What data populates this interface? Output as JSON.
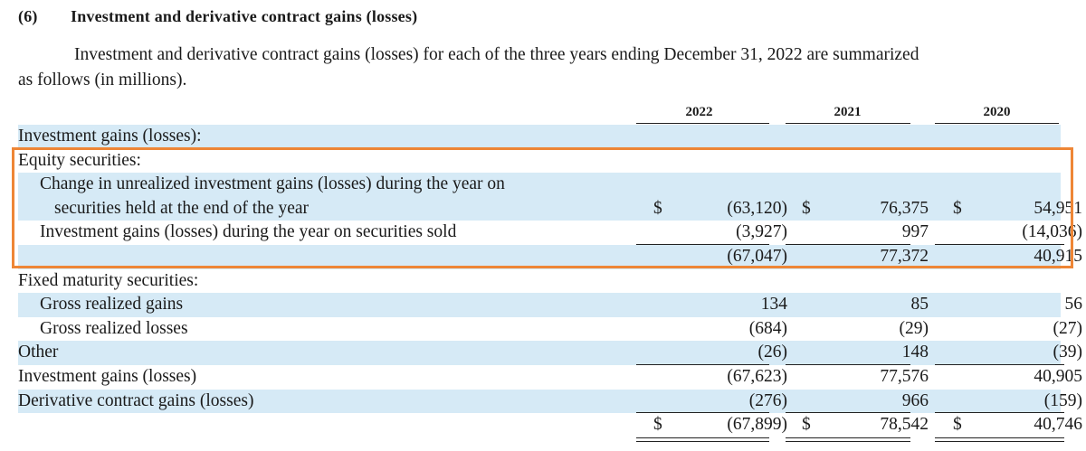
{
  "heading": {
    "number": "(6)",
    "title": "Investment and derivative contract gains (losses)"
  },
  "intro": {
    "line1": "Investment and derivative contract gains (losses) for each of the three years ending December 31, 2022 are summarized",
    "line2": "as follows (in millions)."
  },
  "years": [
    "2022",
    "2021",
    "2020"
  ],
  "rows": [
    {
      "label": "Investment gains (losses):"
    },
    {
      "label": "Equity securities:"
    },
    {
      "label": "Change in unrealized investment gains (losses) during the year on"
    },
    {
      "label": "securities held at the end of the year",
      "currency": "$",
      "values": [
        "(63,120)",
        "76,375",
        "54,951"
      ]
    },
    {
      "label": "Investment gains (losses) during the year on securities sold",
      "values": [
        "(3,927)",
        "997",
        "(14,036)"
      ]
    },
    {
      "label": "",
      "values": [
        "(67,047)",
        "77,372",
        "40,915"
      ]
    },
    {
      "label": "Fixed maturity securities:"
    },
    {
      "label": "Gross realized gains",
      "values": [
        "134",
        "85",
        "56"
      ]
    },
    {
      "label": "Gross realized losses",
      "values": [
        "(684)",
        "(29)",
        "(27)"
      ]
    },
    {
      "label": "Other",
      "values": [
        "(26)",
        "148",
        "(39)"
      ]
    },
    {
      "label": "Investment gains (losses)",
      "values": [
        "(67,623)",
        "77,576",
        "40,905"
      ]
    },
    {
      "label": "Derivative contract gains (losses)",
      "values": [
        "(276)",
        "966",
        "(159)"
      ]
    },
    {
      "label": "",
      "currency": "$",
      "values": [
        "(67,899)",
        "78,542",
        "40,746"
      ]
    }
  ],
  "colors": {
    "row_shade": "#d6eaf6",
    "highlight_border": "#ee8636"
  }
}
